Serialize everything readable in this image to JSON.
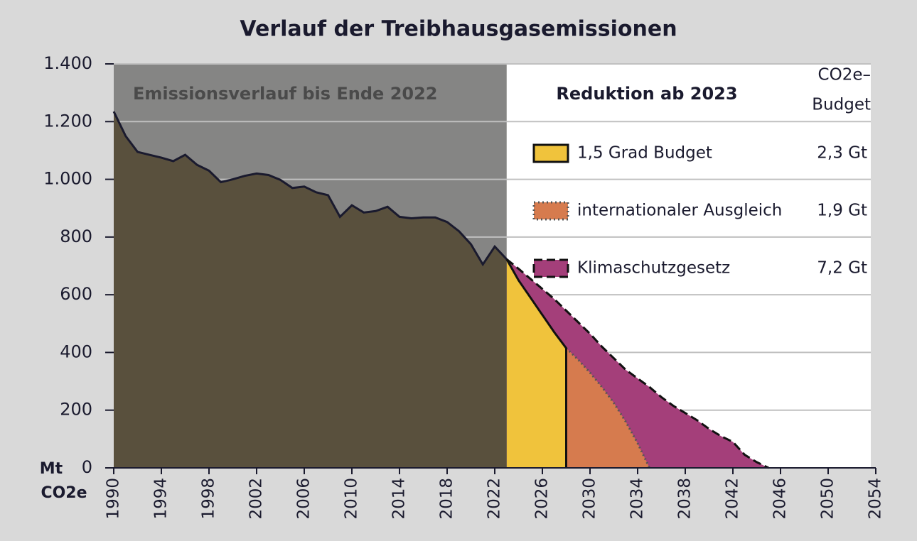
{
  "chart_data": {
    "type": "area",
    "title": "Verlauf der Treibhausgasemissionen",
    "ylabel": [
      "Mt",
      "CO2e"
    ],
    "legend_title": "Reduktion ab 2023",
    "budget_header": [
      "CO2e–",
      "Budget"
    ],
    "xlim": [
      1990,
      2054
    ],
    "xticks": [
      1990,
      1994,
      1998,
      2002,
      2006,
      2010,
      2014,
      2018,
      2022,
      2026,
      2030,
      2034,
      2038,
      2042,
      2046,
      2050,
      2054
    ],
    "ylim": [
      0,
      1400
    ],
    "yticks": [
      0,
      200,
      400,
      600,
      800,
      {
        "value": 1000,
        "label": "1.000"
      },
      {
        "value": 1200,
        "label": "1.200"
      },
      {
        "value": 1400,
        "label": "1.400"
      }
    ],
    "grid": true,
    "series": [
      {
        "name": "Emissionsverlauf bis Ende 2022",
        "color": "#59503d",
        "line_color": "#1a1a2e",
        "line_style": "solid",
        "x": [
          1990,
          1991,
          1992,
          1993,
          1994,
          1995,
          1996,
          1997,
          1998,
          1999,
          2000,
          2001,
          2002,
          2003,
          2004,
          2005,
          2006,
          2007,
          2008,
          2009,
          2010,
          2011,
          2012,
          2013,
          2014,
          2015,
          2016,
          2017,
          2018,
          2019,
          2020,
          2021,
          2022,
          2023
        ],
        "values": [
          1235,
          1150,
          1095,
          1085,
          1075,
          1063,
          1085,
          1050,
          1030,
          990,
          1000,
          1012,
          1020,
          1015,
          998,
          970,
          975,
          955,
          945,
          870,
          910,
          885,
          890,
          905,
          870,
          865,
          868,
          868,
          852,
          820,
          775,
          705,
          767,
          723
        ]
      },
      {
        "name": "1,5 Grad Budget",
        "budget": 2.3,
        "budget_label": "2,3 Gt",
        "color": "#f0c33c",
        "line_color": "#111111",
        "line_style": "solid",
        "x": [
          2023,
          2024,
          2025,
          2026,
          2027,
          2028,
          2028
        ],
        "values": [
          723,
          650,
          590,
          530,
          470,
          415,
          0
        ]
      },
      {
        "name": "internationaler Ausgleich",
        "budget": 1.9,
        "budget_label": "1,9 Gt",
        "color": "#d67b4e",
        "line_color": "#555555",
        "line_style": "dotted",
        "x": [
          2028,
          2029,
          2030,
          2031,
          2032,
          2033,
          2034,
          2035
        ],
        "values": [
          415,
          375,
          330,
          280,
          225,
          160,
          85,
          0
        ]
      },
      {
        "name": "Klimaschutzgesetz",
        "budget": 7.2,
        "budget_label": "7,2 Gt",
        "color": "#a43f7a",
        "line_color": "#111111",
        "line_style": "dashed",
        "x": [
          2023,
          2024,
          2025,
          2026,
          2027,
          2028,
          2029,
          2030,
          2031,
          2032,
          2033,
          2034,
          2035,
          2036,
          2037,
          2038,
          2039,
          2040,
          2041,
          2042,
          2043,
          2044,
          2045
        ],
        "values": [
          723,
          690,
          655,
          620,
          585,
          545,
          505,
          465,
          420,
          380,
          340,
          310,
          280,
          245,
          215,
          190,
          165,
          135,
          110,
          90,
          45,
          20,
          0
        ]
      }
    ]
  }
}
